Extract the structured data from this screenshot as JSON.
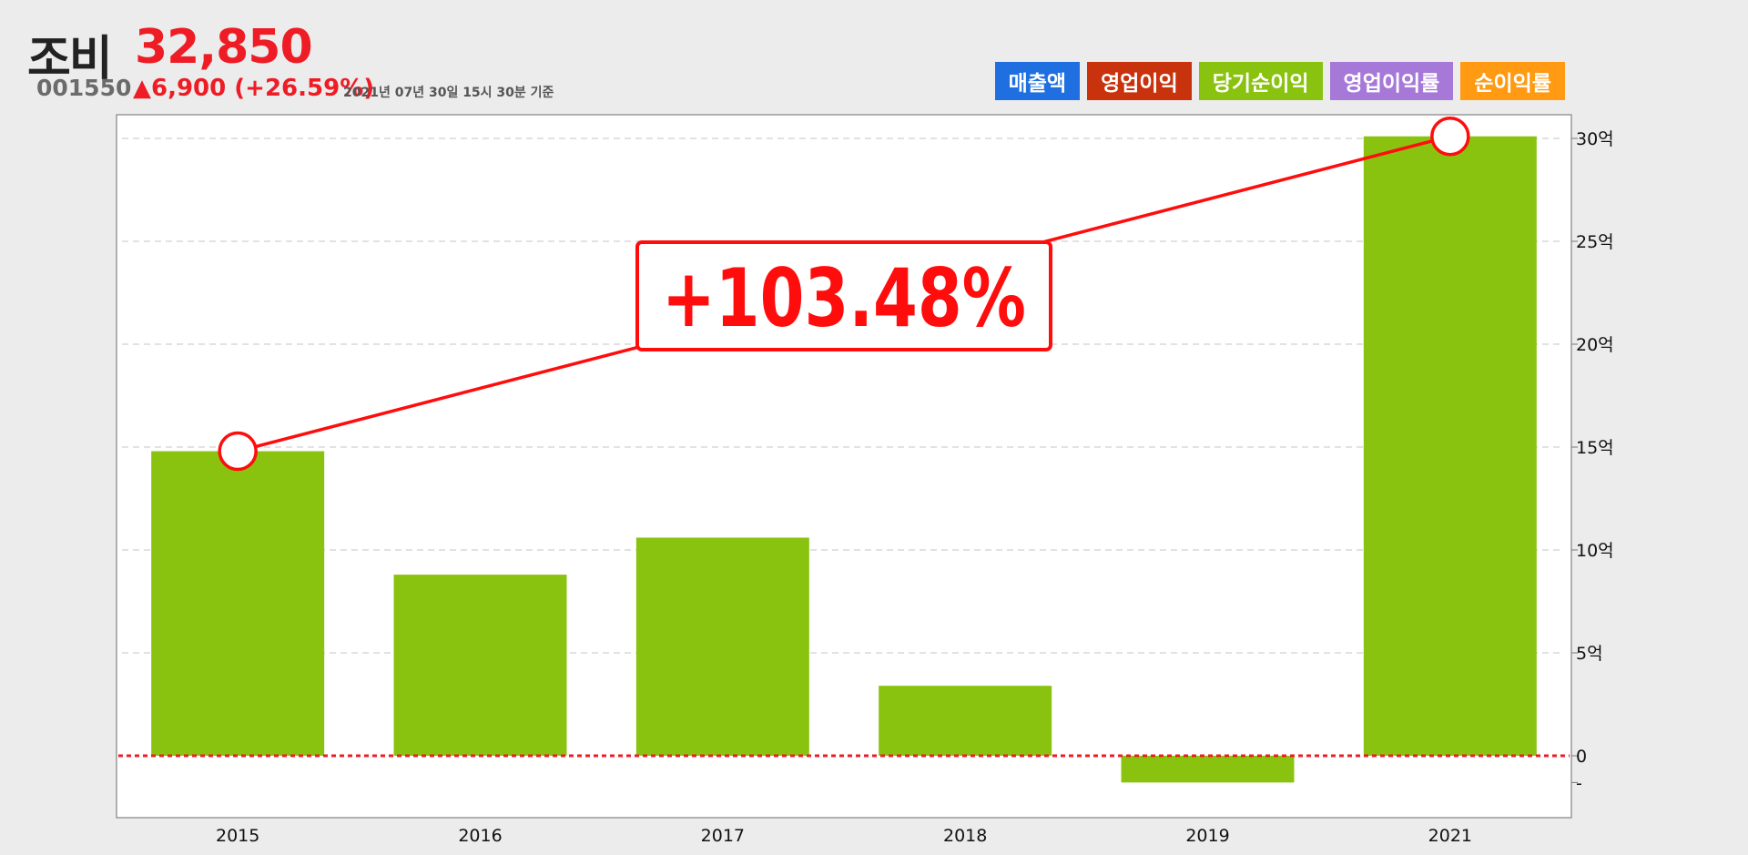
{
  "stock": {
    "name": "조비",
    "price": "32,850",
    "code": "001550",
    "change": "▲6,900 (+26.59%)",
    "as_of": "2021년 07년 30일 15시 30분 기준"
  },
  "legend": [
    {
      "label": "매출액",
      "color": "#1f6fe0"
    },
    {
      "label": "영업이익",
      "color": "#c8320c"
    },
    {
      "label": "당기순이익",
      "color": "#8ac30f"
    },
    {
      "label": "영업이익률",
      "color": "#a678d8"
    },
    {
      "label": "순이익률",
      "color": "#ff9a12"
    }
  ],
  "chart_data": {
    "type": "bar",
    "categories": [
      "2015",
      "2016",
      "2017",
      "2018",
      "2019",
      "2021"
    ],
    "series": [
      {
        "name": "당기순이익",
        "values": [
          14.8,
          8.8,
          10.6,
          3.4,
          -1.3,
          30.1
        ],
        "color": "#8ac30f"
      }
    ],
    "unit": "억",
    "ylim": [
      -3,
      30.6
    ],
    "yticks": [
      {
        "value": 30,
        "label": "30억"
      },
      {
        "value": 25,
        "label": "25억"
      },
      {
        "value": 20,
        "label": "20억"
      },
      {
        "value": 15,
        "label": "15억"
      },
      {
        "value": 10,
        "label": "10억"
      },
      {
        "value": 5,
        "label": "5억"
      },
      {
        "value": 0,
        "label": "0"
      },
      {
        "value": -1.3,
        "label": "-"
      }
    ],
    "y_axis_position": "right",
    "grid": true,
    "zero_line_color": "#ee1c25",
    "annotation": {
      "text": "+103.48%",
      "from_category": "2015",
      "to_category": "2021",
      "color": "#ff0d0d"
    }
  }
}
